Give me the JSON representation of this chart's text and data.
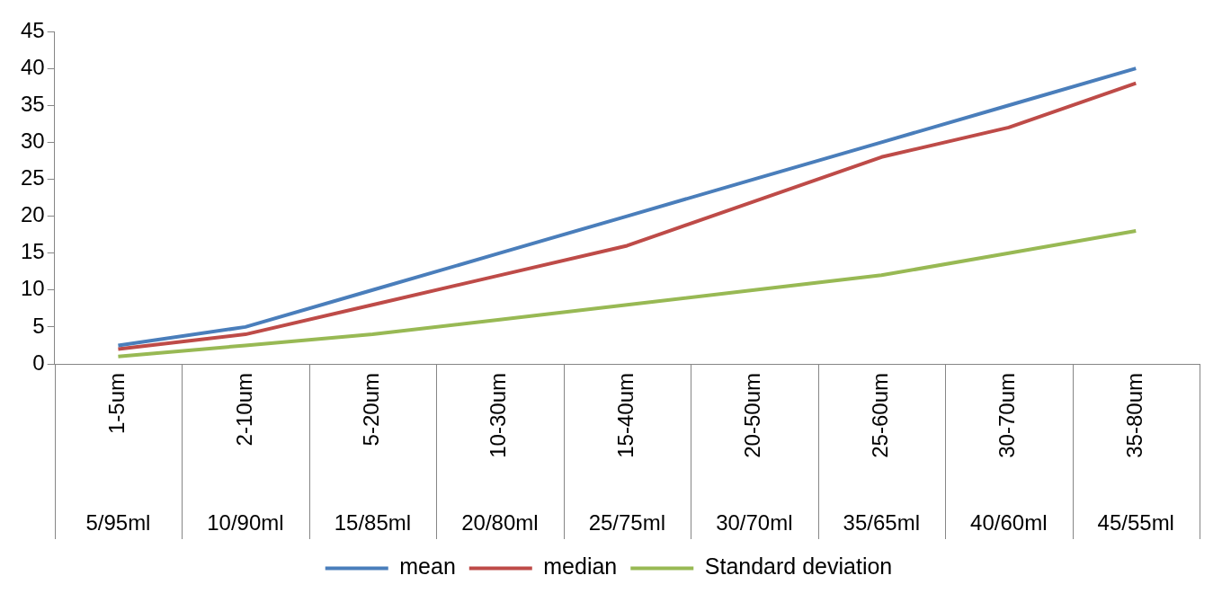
{
  "chart_data": {
    "type": "line",
    "categories": [
      [
        "1-5um",
        "5/95ml"
      ],
      [
        "2-10um",
        "10/90ml"
      ],
      [
        "5-20um",
        "15/85ml"
      ],
      [
        "10-30um",
        "20/80ml"
      ],
      [
        "15-40um",
        "25/75ml"
      ],
      [
        "20-50um",
        "30/70ml"
      ],
      [
        "25-60um",
        "35/65ml"
      ],
      [
        "30-70um",
        "40/60ml"
      ],
      [
        "35-80um",
        "45/55ml"
      ]
    ],
    "series": [
      {
        "name": "mean",
        "color": "#4a7ebb",
        "values": [
          2.5,
          5,
          10,
          15,
          20,
          25,
          30,
          35,
          40
        ]
      },
      {
        "name": "median",
        "color": "#be4b48",
        "values": [
          2,
          4,
          8,
          12,
          16,
          22,
          28,
          32,
          38
        ]
      },
      {
        "name": "Standard deviation",
        "color": "#98b954",
        "values": [
          1,
          2.5,
          4,
          6,
          8,
          10,
          12,
          15,
          18
        ]
      }
    ],
    "ylim": [
      0,
      45
    ],
    "yticks": [
      0,
      5,
      10,
      15,
      20,
      25,
      30,
      35,
      40,
      45
    ],
    "grid": false,
    "legend": "bottom",
    "marker": "none",
    "line_style": "solid"
  }
}
